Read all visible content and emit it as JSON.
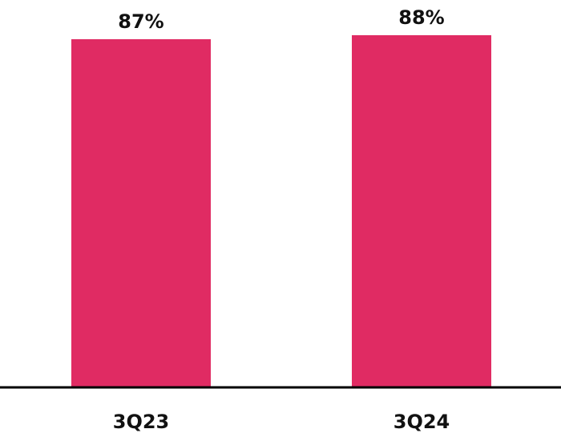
{
  "colors": {
    "bar": "#E02B63",
    "axis": "#000000",
    "text": "#111111"
  },
  "chart_data": {
    "type": "bar",
    "categories": [
      "3Q23",
      "3Q24"
    ],
    "values": [
      87,
      88
    ],
    "value_labels": [
      "87%",
      "88%"
    ],
    "title": "",
    "xlabel": "",
    "ylabel": "",
    "ylim": [
      0,
      88
    ],
    "grid": false,
    "legend": "none"
  }
}
